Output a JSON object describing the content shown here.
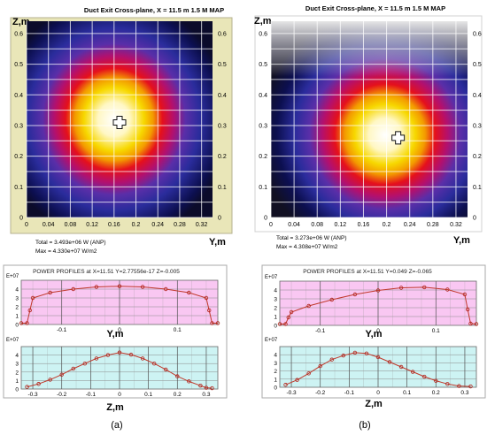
{
  "panels": {
    "a": {
      "map_title": "Duct Exit Cross-plane, X = 11.5 m 1.5 M  MAP",
      "z_label": "Z,m",
      "y_label": "Y,m",
      "total_text": "Total =     3.493e+06 W (ANP)",
      "max_text": "Max =      4.330e+07 W/m2",
      "profiles_title": "POWER PROFILES  at  X=11.51 Y=2.77556e-17 Z=-0.005",
      "exp_label_top": "E+07",
      "exp_label_bot": "E+07",
      "profile_y_label": "Y,m",
      "profile_z_label": "Z,m",
      "caption": "(a)"
    },
    "b": {
      "map_title": "Duct Exit Cross-plane, X = 11.5 m 1.5 M  MAP",
      "z_label": "Z,m",
      "y_label": "Y,m",
      "total_text": "Total =     3.273e+06 W (ANP)",
      "max_text": "Max =      4.308e+07 W/m2",
      "profiles_title": "POWER PROFILES  at  X=11.51 Y=0.049 Z=-0.065",
      "exp_label_top": "E+07",
      "exp_label_bot": "E+07",
      "profile_y_label": "Y,m",
      "profile_z_label": "Z,m",
      "caption": "(b)"
    }
  },
  "chart_data": [
    {
      "type": "heatmap",
      "title": "Duct Exit Cross-plane, X = 11.5 m 1.5 M  MAP",
      "xlabel": "Y,m",
      "ylabel": "Z,m",
      "xlim": [
        0,
        0.34
      ],
      "ylim": [
        0,
        0.64
      ],
      "x_ticks": [
        "0",
        "0.04",
        "0.08",
        "0.12",
        "0.16",
        "0.2",
        "0.24",
        "0.28",
        "0.32"
      ],
      "y_ticks": [
        "0",
        "0.1",
        "0.2",
        "0.3",
        "0.4",
        "0.5",
        "0.6"
      ],
      "peak": {
        "y": 0.17,
        "z": 0.31
      },
      "max_value": 43300000
    },
    {
      "type": "heatmap",
      "title": "Duct Exit Cross-plane, X = 11.5 m 1.5 M  MAP",
      "xlabel": "Y,m",
      "ylabel": "Z,m",
      "xlim": [
        0,
        0.34
      ],
      "ylim": [
        0,
        0.64
      ],
      "x_ticks": [
        "0",
        "0.04",
        "0.08",
        "0.12",
        "0.16",
        "0.2",
        "0.24",
        "0.28",
        "0.32"
      ],
      "y_ticks": [
        "0",
        "0.1",
        "0.2",
        "0.3",
        "0.4",
        "0.5",
        "0.6"
      ],
      "peak": {
        "y": 0.22,
        "z": 0.26
      },
      "max_value": 43080000
    },
    {
      "type": "line",
      "title": "POWER PROFILES  at  X=11.51 Y=2.77556e-17 Z=-0.005",
      "xlabel": "Y,m",
      "ylabel": "E+07",
      "xlim": [
        -0.17,
        0.17
      ],
      "ylim": [
        0,
        5
      ],
      "x_ticks": [
        "-0.1",
        "0",
        "0.1"
      ],
      "y_ticks": [
        "0",
        "1",
        "2",
        "3",
        "4"
      ],
      "series": [
        {
          "x": [
            -0.17,
            -0.16,
            -0.155,
            -0.15,
            -0.12,
            -0.08,
            -0.04,
            0,
            0.04,
            0.08,
            0.12,
            0.15,
            0.155,
            0.16,
            0.17
          ],
          "values": [
            0.15,
            0.15,
            1.6,
            3.0,
            3.6,
            4.0,
            4.25,
            4.33,
            4.25,
            4.0,
            3.6,
            3.0,
            1.6,
            0.15,
            0.15
          ]
        }
      ]
    },
    {
      "type": "line",
      "title": "",
      "xlabel": "Z,m",
      "ylabel": "E+07",
      "xlim": [
        -0.34,
        0.34
      ],
      "ylim": [
        0,
        5
      ],
      "x_ticks": [
        "-0.3",
        "-0.2",
        "-0.1",
        "0",
        "0.1",
        "0.2",
        "0.3"
      ],
      "y_ticks": [
        "0",
        "1",
        "2",
        "3",
        "4"
      ],
      "series": [
        {
          "x": [
            -0.32,
            -0.28,
            -0.24,
            -0.2,
            -0.16,
            -0.12,
            -0.08,
            -0.04,
            0,
            0.04,
            0.08,
            0.12,
            0.16,
            0.2,
            0.24,
            0.28,
            0.3,
            0.32
          ],
          "values": [
            0.25,
            0.6,
            1.1,
            1.7,
            2.4,
            3.0,
            3.6,
            4.0,
            4.3,
            4.05,
            3.6,
            3.0,
            2.3,
            1.5,
            0.9,
            0.4,
            0.15,
            0.1
          ]
        }
      ]
    },
    {
      "type": "line",
      "title": "POWER PROFILES  at  X=11.51 Y=0.049 Z=-0.065",
      "xlabel": "Y,m",
      "ylabel": "E+07",
      "xlim": [
        -0.17,
        0.17
      ],
      "ylim": [
        0,
        5
      ],
      "x_ticks": [
        "-0.1",
        "0",
        "0.1"
      ],
      "y_ticks": [
        "0",
        "1",
        "2",
        "3",
        "4"
      ],
      "series": [
        {
          "x": [
            -0.17,
            -0.16,
            -0.155,
            -0.15,
            -0.12,
            -0.08,
            -0.04,
            0,
            0.04,
            0.08,
            0.12,
            0.15,
            0.155,
            0.16,
            0.17
          ],
          "values": [
            0.15,
            0.15,
            0.9,
            1.5,
            2.2,
            2.9,
            3.5,
            3.95,
            4.25,
            4.31,
            4.05,
            3.5,
            1.8,
            0.2,
            0.15
          ]
        }
      ]
    },
    {
      "type": "line",
      "title": "",
      "xlabel": "Z,m",
      "ylabel": "E+07",
      "xlim": [
        -0.34,
        0.34
      ],
      "ylim": [
        0,
        5
      ],
      "x_ticks": [
        "-0.3",
        "-0.2",
        "-0.1",
        "0",
        "0.1",
        "0.2",
        "0.3"
      ],
      "y_ticks": [
        "0",
        "1",
        "2",
        "3",
        "4"
      ],
      "series": [
        {
          "x": [
            -0.32,
            -0.28,
            -0.24,
            -0.2,
            -0.16,
            -0.12,
            -0.08,
            -0.04,
            0,
            0.04,
            0.08,
            0.12,
            0.16,
            0.2,
            0.24,
            0.28,
            0.32
          ],
          "values": [
            0.3,
            0.9,
            1.7,
            2.6,
            3.4,
            3.9,
            4.25,
            4.15,
            3.7,
            3.1,
            2.5,
            1.9,
            1.3,
            0.8,
            0.4,
            0.15,
            0.1
          ]
        }
      ]
    }
  ]
}
